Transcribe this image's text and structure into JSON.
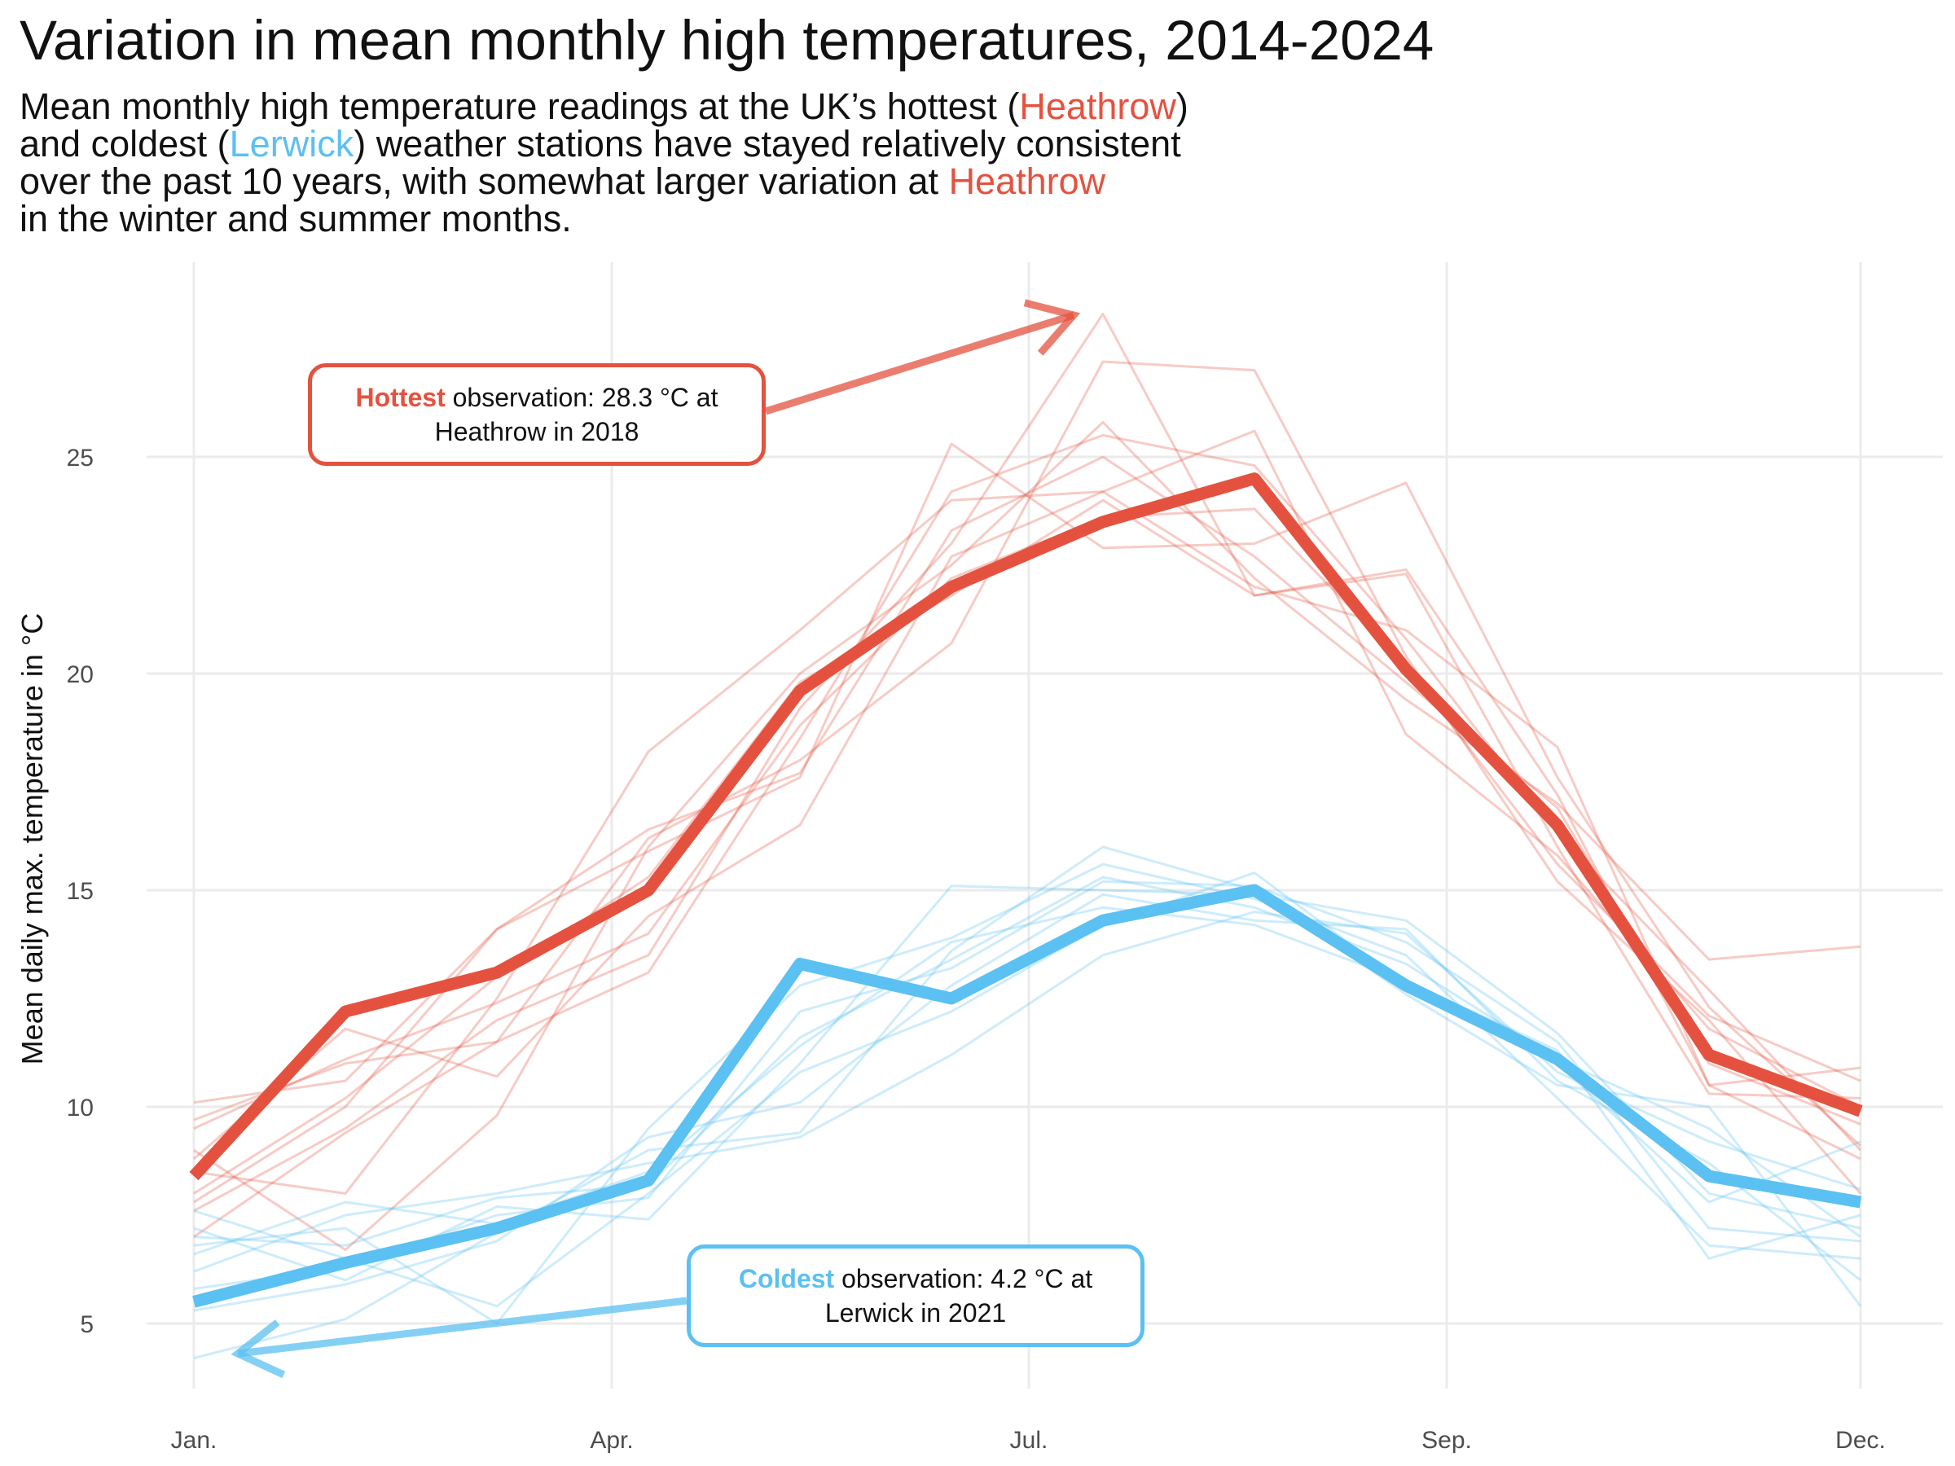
{
  "title": "Variation in mean monthly high temperatures, 2014-2024",
  "subtitle": {
    "line1": [
      "Mean monthly high temperature readings at the UK’s hottest (",
      "Heathrow",
      ")"
    ],
    "line2": [
      "and coldest (",
      "Lerwick",
      ") weather stations have stayed relatively consistent"
    ],
    "line3": [
      "over the past 10 years, with somewhat larger variation at ",
      "Heathrow"
    ],
    "line4": "in the winter and summer months."
  },
  "annotations": {
    "hot": {
      "bold": "Hottest",
      "rest": " observation: 28.3 °C at",
      "line2": "Heathrow in 2018"
    },
    "cold": {
      "bold": "Coldest",
      "rest": " observation: 4.2 °C at",
      "line2": "Lerwick in 2021"
    }
  },
  "colors": {
    "heathrow": "#e4523f",
    "lerwick": "#5bc0f2",
    "grid": "#ebebeb"
  },
  "chart_data": {
    "type": "line",
    "title": "Variation in mean monthly high temperatures, 2014-2024",
    "xlabel": "",
    "ylabel": "Mean daily max. temperature in °C",
    "x": [
      1,
      2,
      3,
      4,
      5,
      6,
      7,
      8,
      9,
      10,
      11,
      12
    ],
    "xlim": [
      1,
      12
    ],
    "ylim": [
      4,
      29
    ],
    "xticks": [
      {
        "x": 1,
        "label": "Jan."
      },
      {
        "x": 4,
        "label": "Apr."
      },
      {
        "x": 7,
        "label": "Jul."
      },
      {
        "x": 10,
        "label": "Sep."
      },
      {
        "x": 13,
        "label": "Dec."
      }
    ],
    "yticks": [
      5,
      10,
      15,
      20,
      25
    ],
    "grid": true,
    "highlight_series": [
      {
        "name": "Heathrow",
        "color": "#e4523f",
        "points": [
          [
            1,
            8.4
          ],
          [
            2,
            12.2
          ],
          [
            3,
            13.1
          ],
          [
            4,
            15.0
          ],
          [
            5,
            19.6
          ],
          [
            6,
            22.0
          ],
          [
            7,
            23.5
          ],
          [
            8,
            24.5
          ],
          [
            9,
            20.1
          ],
          [
            10,
            16.5
          ],
          [
            11,
            11.2
          ],
          [
            12,
            9.9
          ]
        ]
      },
      {
        "name": "Lerwick",
        "color": "#5bc0f2",
        "points": [
          [
            1,
            5.5
          ],
          [
            2,
            6.4
          ],
          [
            3,
            7.2
          ],
          [
            4,
            8.3
          ],
          [
            5,
            13.3
          ],
          [
            6,
            12.5
          ],
          [
            7,
            14.3
          ],
          [
            8,
            15.0
          ],
          [
            9,
            12.8
          ],
          [
            10,
            11.1
          ],
          [
            11,
            8.4
          ],
          [
            12,
            7.8
          ]
        ]
      }
    ],
    "background_series": {
      "heathrow": [
        [
          [
            1,
            10.1
          ],
          [
            2,
            10.6
          ],
          [
            3,
            14.1
          ],
          [
            4,
            15.9
          ],
          [
            5,
            17.6
          ],
          [
            6,
            25.3
          ],
          [
            7,
            22.9
          ],
          [
            8,
            23.0
          ],
          [
            9,
            24.4
          ],
          [
            10,
            17.6
          ],
          [
            11,
            12.3
          ],
          [
            12,
            9.1
          ]
        ],
        [
          [
            1,
            7.6
          ],
          [
            2,
            9.5
          ],
          [
            3,
            12.0
          ],
          [
            4,
            13.5
          ],
          [
            5,
            19.2
          ],
          [
            6,
            23.0
          ],
          [
            7,
            28.3
          ],
          [
            8,
            21.8
          ],
          [
            9,
            22.3
          ],
          [
            10,
            16.0
          ],
          [
            11,
            10.3
          ],
          [
            12,
            10.2
          ]
        ],
        [
          [
            1,
            9.7
          ],
          [
            2,
            11.0
          ],
          [
            3,
            11.5
          ],
          [
            4,
            16.2
          ],
          [
            5,
            18.0
          ],
          [
            6,
            20.7
          ],
          [
            7,
            27.2
          ],
          [
            8,
            27.0
          ],
          [
            9,
            20.4
          ],
          [
            10,
            15.2
          ],
          [
            11,
            12.0
          ],
          [
            12,
            8.0
          ]
        ],
        [
          [
            1,
            8.5
          ],
          [
            2,
            8.0
          ],
          [
            3,
            12.5
          ],
          [
            4,
            18.2
          ],
          [
            5,
            21.0
          ],
          [
            6,
            24.0
          ],
          [
            7,
            24.2
          ],
          [
            8,
            22.0
          ],
          [
            9,
            21.0
          ],
          [
            10,
            18.3
          ],
          [
            11,
            10.5
          ],
          [
            12,
            10.9
          ]
        ],
        [
          [
            1,
            9.0
          ],
          [
            2,
            6.7
          ],
          [
            3,
            9.8
          ],
          [
            4,
            16.0
          ],
          [
            5,
            20.0
          ],
          [
            6,
            22.5
          ],
          [
            7,
            25.8
          ],
          [
            8,
            22.2
          ],
          [
            9,
            19.4
          ],
          [
            10,
            17.0
          ],
          [
            11,
            13.4
          ],
          [
            12,
            13.7
          ]
        ],
        [
          [
            1,
            8.8
          ],
          [
            2,
            11.8
          ],
          [
            3,
            10.7
          ],
          [
            4,
            14.4
          ],
          [
            5,
            16.5
          ],
          [
            6,
            22.7
          ],
          [
            7,
            24.2
          ],
          [
            8,
            25.6
          ],
          [
            9,
            18.6
          ],
          [
            10,
            15.8
          ],
          [
            11,
            11.8
          ],
          [
            12,
            10.0
          ]
        ],
        [
          [
            1,
            7.0
          ],
          [
            2,
            9.4
          ],
          [
            3,
            11.5
          ],
          [
            4,
            13.1
          ],
          [
            5,
            18.5
          ],
          [
            6,
            24.2
          ],
          [
            7,
            25.5
          ],
          [
            8,
            24.8
          ],
          [
            9,
            20.8
          ],
          [
            10,
            16.3
          ],
          [
            11,
            12.7
          ],
          [
            12,
            9.0
          ]
        ],
        [
          [
            1,
            8.0
          ],
          [
            2,
            10.2
          ],
          [
            3,
            13.0
          ],
          [
            4,
            15.3
          ],
          [
            5,
            19.8
          ],
          [
            6,
            21.8
          ],
          [
            7,
            24.0
          ],
          [
            8,
            21.8
          ],
          [
            9,
            22.4
          ],
          [
            10,
            17.2
          ],
          [
            11,
            10.5
          ],
          [
            12,
            8.8
          ]
        ],
        [
          [
            1,
            9.5
          ],
          [
            2,
            11.1
          ],
          [
            3,
            12.4
          ],
          [
            4,
            14.0
          ],
          [
            5,
            18.8
          ],
          [
            6,
            22.2
          ],
          [
            7,
            23.6
          ],
          [
            8,
            23.8
          ],
          [
            9,
            20.2
          ],
          [
            10,
            15.6
          ],
          [
            11,
            12.1
          ],
          [
            12,
            10.6
          ]
        ],
        [
          [
            1,
            7.8
          ],
          [
            2,
            10.0
          ],
          [
            3,
            14.1
          ],
          [
            4,
            16.4
          ],
          [
            5,
            17.7
          ],
          [
            6,
            23.3
          ],
          [
            7,
            25.0
          ],
          [
            8,
            22.7
          ],
          [
            9,
            19.8
          ],
          [
            10,
            16.9
          ],
          [
            11,
            11.0
          ],
          [
            12,
            9.6
          ]
        ]
      ],
      "lerwick": [
        [
          [
            1,
            4.2
          ],
          [
            2,
            5.1
          ],
          [
            3,
            7.1
          ],
          [
            4,
            9.0
          ],
          [
            5,
            9.4
          ],
          [
            6,
            13.6
          ],
          [
            7,
            16.0
          ],
          [
            8,
            15.0
          ],
          [
            9,
            12.6
          ],
          [
            10,
            10.5
          ],
          [
            11,
            10.0
          ],
          [
            12,
            5.4
          ]
        ],
        [
          [
            1,
            7.2
          ],
          [
            2,
            6.0
          ],
          [
            3,
            7.7
          ],
          [
            4,
            7.4
          ],
          [
            5,
            11.0
          ],
          [
            6,
            15.1
          ],
          [
            7,
            15.0
          ],
          [
            8,
            14.9
          ],
          [
            9,
            14.3
          ],
          [
            10,
            11.7
          ],
          [
            11,
            8.0
          ],
          [
            12,
            7.2
          ]
        ],
        [
          [
            1,
            6.8
          ],
          [
            2,
            7.2
          ],
          [
            3,
            5.0
          ],
          [
            4,
            9.5
          ],
          [
            5,
            12.8
          ],
          [
            6,
            13.9
          ],
          [
            7,
            15.6
          ],
          [
            8,
            14.8
          ],
          [
            9,
            13.5
          ],
          [
            10,
            10.2
          ],
          [
            11,
            6.8
          ],
          [
            12,
            6.5
          ]
        ],
        [
          [
            1,
            7.6
          ],
          [
            2,
            6.5
          ],
          [
            3,
            5.4
          ],
          [
            4,
            8.0
          ],
          [
            5,
            10.8
          ],
          [
            6,
            12.2
          ],
          [
            7,
            14.2
          ],
          [
            8,
            15.4
          ],
          [
            9,
            12.8
          ],
          [
            10,
            11.0
          ],
          [
            11,
            7.8
          ],
          [
            12,
            9.2
          ]
        ],
        [
          [
            1,
            6.2
          ],
          [
            2,
            7.5
          ],
          [
            3,
            8.0
          ],
          [
            4,
            8.7
          ],
          [
            5,
            9.3
          ],
          [
            6,
            11.2
          ],
          [
            7,
            13.5
          ],
          [
            8,
            14.5
          ],
          [
            9,
            14.0
          ],
          [
            10,
            10.8
          ],
          [
            11,
            9.2
          ],
          [
            12,
            8.1
          ]
        ],
        [
          [
            1,
            6.6
          ],
          [
            2,
            7.8
          ],
          [
            3,
            7.3
          ],
          [
            4,
            8.5
          ],
          [
            5,
            11.4
          ],
          [
            6,
            13.8
          ],
          [
            7,
            14.6
          ],
          [
            8,
            14.2
          ],
          [
            9,
            12.9
          ],
          [
            10,
            11.3
          ],
          [
            11,
            6.5
          ],
          [
            12,
            7.5
          ]
        ],
        [
          [
            1,
            5.8
          ],
          [
            2,
            6.3
          ],
          [
            3,
            7.5
          ],
          [
            4,
            7.9
          ],
          [
            5,
            12.2
          ],
          [
            6,
            13.2
          ],
          [
            7,
            15.2
          ],
          [
            8,
            15.1
          ],
          [
            9,
            13.8
          ],
          [
            10,
            11.5
          ],
          [
            11,
            7.2
          ],
          [
            12,
            6.9
          ]
        ],
        [
          [
            1,
            5.3
          ],
          [
            2,
            5.9
          ],
          [
            3,
            6.9
          ],
          [
            4,
            9.3
          ],
          [
            5,
            10.1
          ],
          [
            6,
            12.8
          ],
          [
            7,
            14.9
          ],
          [
            8,
            14.3
          ],
          [
            9,
            14.1
          ],
          [
            10,
            10.6
          ],
          [
            11,
            8.7
          ],
          [
            12,
            6.0
          ]
        ],
        [
          [
            1,
            7.0
          ],
          [
            2,
            6.8
          ],
          [
            3,
            7.9
          ],
          [
            4,
            8.2
          ],
          [
            5,
            11.6
          ],
          [
            6,
            13.4
          ],
          [
            7,
            15.3
          ],
          [
            8,
            14.6
          ],
          [
            9,
            13.3
          ],
          [
            10,
            11.1
          ],
          [
            11,
            9.5
          ],
          [
            12,
            7.0
          ]
        ]
      ]
    },
    "arrows": {
      "hot": {
        "from": [
          7.1,
          27.5
        ],
        "to": [
          7.1,
          27.5
        ]
      },
      "cold": {
        "from": [
          7.1,
          27.5
        ],
        "to": [
          7.1,
          27.5
        ]
      }
    }
  }
}
